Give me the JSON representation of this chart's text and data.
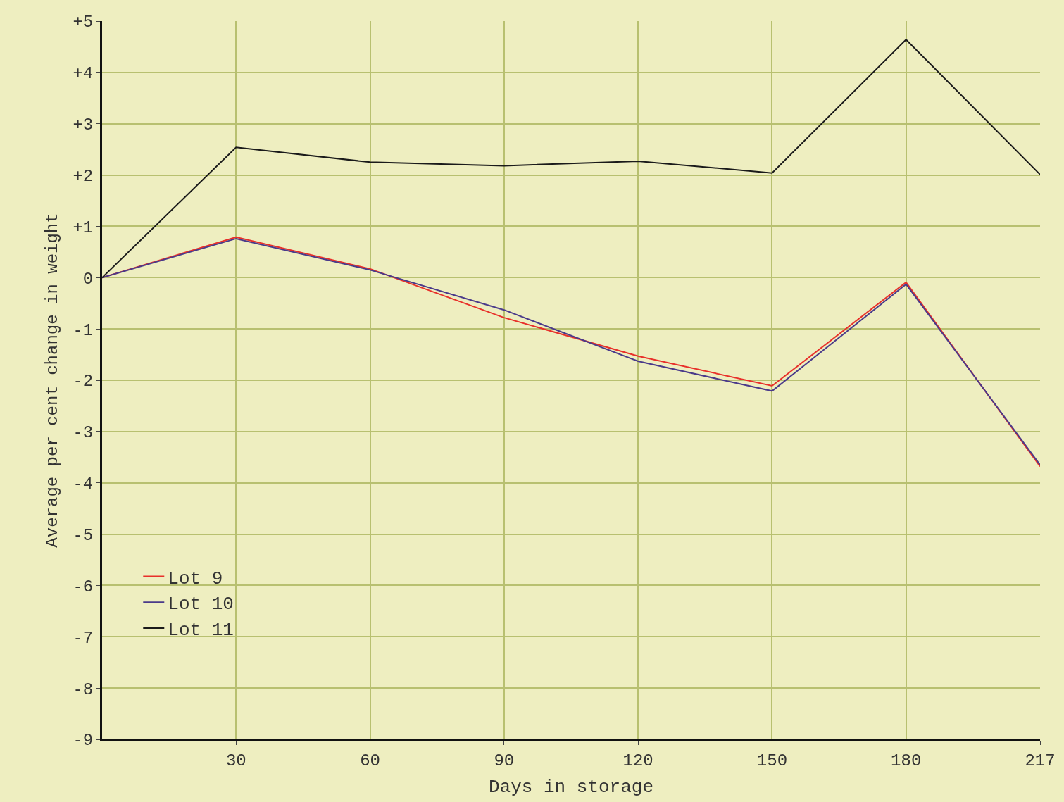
{
  "chart_data": {
    "type": "line",
    "xlabel": "Days in storage",
    "ylabel": "Average per cent change in weight",
    "categories": [
      null,
      "30",
      "60",
      "90",
      "120",
      "150",
      "180",
      "217"
    ],
    "series": [
      {
        "name": "Lot 9",
        "color": "#e8302a",
        "values": [
          0,
          0.79,
          0.17,
          -0.78,
          -1.53,
          -2.11,
          -0.09,
          -3.68
        ]
      },
      {
        "name": "Lot 10",
        "color": "#4a3a8a",
        "values": [
          0,
          0.76,
          0.15,
          -0.63,
          -1.63,
          -2.21,
          -0.13,
          -3.65
        ]
      },
      {
        "name": "Lot 11",
        "color": "#1a1a1a",
        "values": [
          0,
          2.54,
          2.25,
          2.18,
          2.27,
          2.04,
          4.64,
          2.01
        ]
      }
    ],
    "ylim": [
      -9,
      5
    ],
    "yticks": [
      {
        "value": 5,
        "label": "+5"
      },
      {
        "value": 4,
        "label": "+4"
      },
      {
        "value": 3,
        "label": "+3"
      },
      {
        "value": 2,
        "label": "+2"
      },
      {
        "value": 1,
        "label": "+1"
      },
      0,
      -1,
      -2,
      -3,
      -4,
      -5,
      -6,
      -7,
      -8,
      -9
    ],
    "grid": true,
    "legend": "bottom left",
    "marker": "none",
    "line_style": "solid"
  }
}
